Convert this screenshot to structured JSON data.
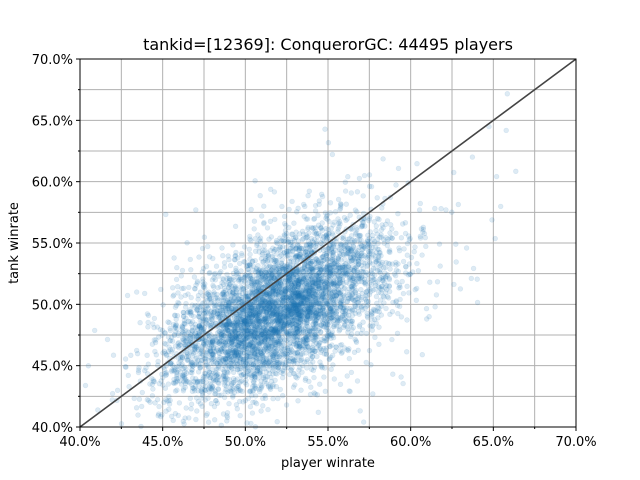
{
  "chart_data": {
    "type": "scatter",
    "title": "tankid=[12369]: ConquerorGC: 44495 players",
    "xlabel": "player winrate",
    "ylabel": "tank winrate",
    "xlim": [
      0.4,
      0.7
    ],
    "ylim": [
      0.4,
      0.7
    ],
    "x_ticks": [
      0.4,
      0.45,
      0.5,
      0.55,
      0.6,
      0.65,
      0.7
    ],
    "x_tick_labels": [
      "40.0%",
      "45.0%",
      "50.0%",
      "55.0%",
      "60.0%",
      "65.0%",
      "70.0%"
    ],
    "y_ticks": [
      0.4,
      0.45,
      0.5,
      0.55,
      0.6,
      0.65,
      0.7
    ],
    "y_tick_labels": [
      "40.0%",
      "45.0%",
      "50.0%",
      "55.0%",
      "60.0%",
      "65.0%",
      "70.0%"
    ],
    "minor_grid_step": 0.025,
    "grid": true,
    "point_color": "#1f77b4",
    "point_alpha": 0.15,
    "reference_line": {
      "from": [
        0.4,
        0.4
      ],
      "to": [
        0.7,
        0.7
      ],
      "color": "#444444"
    },
    "series": [
      {
        "n_points": 44495,
        "distribution": {
          "x_mean": 0.52,
          "y_mean": 0.495,
          "x_std": 0.033,
          "y_std": 0.034,
          "correlation": 0.55
        }
      }
    ]
  }
}
